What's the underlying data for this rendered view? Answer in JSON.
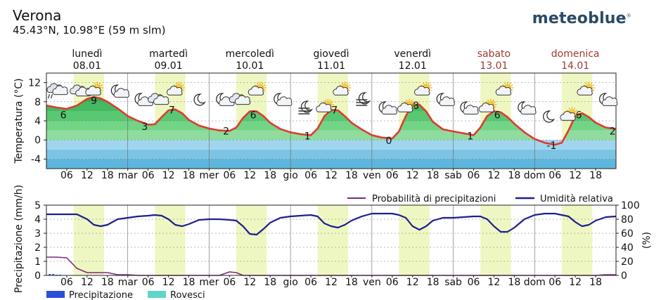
{
  "header": {
    "location": "Verona",
    "coordinates": "45.43°N, 10.98°E (59 m slm)",
    "logo": "meteoblue",
    "logo_mark": "®"
  },
  "colors": {
    "temp_line": "#e03a2e",
    "humidity_line": "#1d1f8f",
    "precip_prob_line": "#7a2a7a",
    "precip_bar": "#2b50d6",
    "showers_bar": "#5fd6c8",
    "day_band": "#eef7c2",
    "weekend_label": "#9b3b2f"
  },
  "days": [
    {
      "name": "lunedì",
      "date": "08.01",
      "weekend": false
    },
    {
      "name": "martedì",
      "date": "09.01",
      "weekend": false
    },
    {
      "name": "mercoledì",
      "date": "10.01",
      "weekend": false
    },
    {
      "name": "giovedì",
      "date": "11.01",
      "weekend": false
    },
    {
      "name": "venerdì",
      "date": "12.01",
      "weekend": false
    },
    {
      "name": "sabato",
      "date": "13.01",
      "weekend": true
    },
    {
      "name": "domenica",
      "date": "14.01",
      "weekend": true
    }
  ],
  "weather_icons": [
    {
      "hour": 3,
      "icon": "rain-cloud-icon",
      "row": 0
    },
    {
      "hour": 10,
      "icon": "cloud-icon",
      "row": 0
    },
    {
      "hour": 14,
      "icon": "sun-cloud-icon",
      "row": 0
    },
    {
      "hour": 21,
      "icon": "moon-cloud-icon",
      "row": 0
    },
    {
      "hour": 28,
      "icon": "moon-cloud-icon",
      "row": 1
    },
    {
      "hour": 33,
      "icon": "cloud-icon",
      "row": 1
    },
    {
      "hour": 38,
      "icon": "sun-cloud-icon",
      "row": 0
    },
    {
      "hour": 45,
      "icon": "moon-icon",
      "row": 1
    },
    {
      "hour": 52,
      "icon": "moon-cloud-icon",
      "row": 1
    },
    {
      "hour": 57,
      "icon": "cloud-icon",
      "row": 1
    },
    {
      "hour": 62,
      "icon": "sun-cloud-icon",
      "row": 0
    },
    {
      "hour": 69,
      "icon": "moon-cloud-icon",
      "row": 1
    },
    {
      "hour": 76,
      "icon": "fog-moon-icon",
      "row": 2
    },
    {
      "hour": 82,
      "icon": "sun-cloud-icon",
      "row": 2
    },
    {
      "hour": 87,
      "icon": "sun-cloud-icon",
      "row": 0
    },
    {
      "hour": 93,
      "icon": "fog-moon-icon",
      "row": 1
    },
    {
      "hour": 100,
      "icon": "moon-cloud-icon",
      "row": 2
    },
    {
      "hour": 106,
      "icon": "sun-cloud-icon",
      "row": 2
    },
    {
      "hour": 111,
      "icon": "sun-cloud-icon",
      "row": 0
    },
    {
      "hour": 117,
      "icon": "moon-cloud-icon",
      "row": 1
    },
    {
      "hour": 124,
      "icon": "moon-cloud-icon",
      "row": 2
    },
    {
      "hour": 130,
      "icon": "sun-cloud-icon",
      "row": 2
    },
    {
      "hour": 135,
      "icon": "sun-cloud-icon",
      "row": 0
    },
    {
      "hour": 141,
      "icon": "moon-cloud-icon",
      "row": 2
    },
    {
      "hour": 148,
      "icon": "moon-icon",
      "row": 3
    },
    {
      "hour": 154,
      "icon": "sun-cloud-icon",
      "row": 3
    },
    {
      "hour": 159,
      "icon": "sun-cloud-icon",
      "row": 0
    },
    {
      "hour": 165,
      "icon": "moon-cloud-icon",
      "row": 1
    }
  ],
  "chart_data": [
    {
      "type": "line",
      "ylabel": "Temperatura (°C)",
      "ylim": [
        -6,
        14
      ],
      "yticks": [
        -4,
        0,
        4,
        8,
        12
      ],
      "xlim": [
        0,
        168
      ],
      "x_tick_labels": [
        "06",
        "12",
        "18",
        "mar",
        "06",
        "12",
        "18",
        "mer",
        "06",
        "12",
        "18",
        "gio",
        "06",
        "12",
        "18",
        "ven",
        "06",
        "12",
        "18",
        "sab",
        "06",
        "12",
        "18",
        "dom",
        "06",
        "12",
        "18"
      ],
      "x_tick_hours": [
        6,
        12,
        18,
        24,
        30,
        36,
        42,
        48,
        54,
        60,
        66,
        72,
        78,
        84,
        90,
        96,
        102,
        108,
        114,
        120,
        126,
        132,
        138,
        144,
        150,
        156,
        162
      ],
      "daylight_bands": [
        [
          8,
          17
        ],
        [
          32,
          41
        ],
        [
          56,
          65
        ],
        [
          80,
          89
        ],
        [
          104,
          113
        ],
        [
          128,
          137
        ],
        [
          152,
          161
        ]
      ],
      "x": [
        0,
        3,
        6,
        9,
        12,
        14,
        16,
        18,
        21,
        24,
        27,
        30,
        32,
        34,
        36,
        38,
        40,
        42,
        45,
        48,
        51,
        54,
        56,
        58,
        60,
        62,
        64,
        66,
        69,
        72,
        75,
        78,
        80,
        82,
        84,
        86,
        88,
        90,
        93,
        96,
        99,
        102,
        104,
        106,
        108,
        110,
        112,
        114,
        117,
        120,
        123,
        126,
        128,
        130,
        132,
        134,
        136,
        138,
        141,
        144,
        147,
        150,
        152,
        154,
        156,
        158,
        160,
        162,
        165,
        168
      ],
      "series": [
        {
          "values": [
            7.2,
            6.8,
            6.5,
            7.2,
            8.6,
            9.0,
            8.7,
            8.0,
            6.6,
            5.0,
            4.0,
            3.2,
            3.3,
            4.8,
            6.2,
            6.4,
            5.6,
            4.2,
            3.0,
            2.4,
            2.0,
            1.9,
            2.6,
            4.6,
            6.0,
            6.0,
            5.0,
            3.6,
            2.3,
            1.6,
            1.2,
            1.0,
            2.4,
            5.0,
            6.3,
            6.2,
            5.0,
            3.6,
            2.2,
            1.0,
            0.5,
            0.3,
            1.8,
            5.0,
            7.4,
            7.4,
            6.0,
            3.8,
            2.2,
            1.8,
            1.4,
            1.0,
            2.6,
            5.0,
            6.0,
            5.8,
            4.8,
            3.4,
            1.6,
            0.2,
            -0.6,
            -1.0,
            -0.6,
            2.0,
            5.0,
            5.6,
            4.8,
            3.6,
            2.6,
            2.3
          ]
        }
      ],
      "labels": [
        {
          "hour": 5,
          "value": 6,
          "text": "6"
        },
        {
          "hour": 14,
          "value": 9,
          "text": "9"
        },
        {
          "hour": 29,
          "value": 3,
          "text": "3"
        },
        {
          "hour": 37,
          "value": 7,
          "text": "7"
        },
        {
          "hour": 53,
          "value": 2,
          "text": "2"
        },
        {
          "hour": 61,
          "value": 6,
          "text": "6"
        },
        {
          "hour": 77,
          "value": 1,
          "text": "1"
        },
        {
          "hour": 85,
          "value": 7,
          "text": "7"
        },
        {
          "hour": 101,
          "value": 0,
          "text": "0"
        },
        {
          "hour": 109,
          "value": 8,
          "text": "8"
        },
        {
          "hour": 125,
          "value": 1,
          "text": "1"
        },
        {
          "hour": 133,
          "value": 6,
          "text": "6"
        },
        {
          "hour": 149,
          "value": -1,
          "text": "-1"
        },
        {
          "hour": 157,
          "value": 6,
          "text": "6"
        },
        {
          "hour": 167,
          "value": 2,
          "text": "2"
        }
      ]
    },
    {
      "type": "line",
      "ylabel": "Precipitazione (mm/h)",
      "ylabel_right": "(%)",
      "ylim": [
        0,
        5
      ],
      "yticks": [
        0,
        1,
        2,
        3,
        4,
        5
      ],
      "ylim_right": [
        0,
        100
      ],
      "yticks_right": [
        0,
        20,
        40,
        60,
        80,
        100
      ],
      "xlim": [
        0,
        168
      ],
      "x_tick_labels": [
        "06",
        "12",
        "18",
        "mar",
        "06",
        "12",
        "18",
        "mer",
        "06",
        "12",
        "18",
        "gio",
        "06",
        "12",
        "18",
        "ven",
        "06",
        "12",
        "18",
        "sab",
        "06",
        "12",
        "18",
        "dom",
        "06",
        "12",
        "18"
      ],
      "x_tick_hours": [
        6,
        12,
        18,
        24,
        30,
        36,
        42,
        48,
        54,
        60,
        66,
        72,
        78,
        84,
        90,
        96,
        102,
        108,
        114,
        120,
        126,
        132,
        138,
        144,
        150,
        156,
        162
      ],
      "daylight_bands": [
        [
          8,
          17
        ],
        [
          32,
          41
        ],
        [
          56,
          65
        ],
        [
          80,
          89
        ],
        [
          104,
          113
        ],
        [
          128,
          137
        ],
        [
          152,
          161
        ]
      ],
      "legend_top": [
        "Probabilità di precipitazioni",
        "Umidità relativa"
      ],
      "legend_bottom": [
        "Precipitazione",
        "Rovesci"
      ],
      "x": [
        0,
        3,
        6,
        9,
        12,
        14,
        16,
        18,
        21,
        24,
        27,
        30,
        32,
        34,
        36,
        38,
        40,
        42,
        45,
        48,
        51,
        54,
        56,
        58,
        60,
        62,
        64,
        66,
        69,
        72,
        75,
        78,
        80,
        82,
        84,
        86,
        88,
        90,
        93,
        96,
        99,
        102,
        104,
        106,
        108,
        110,
        112,
        114,
        117,
        120,
        123,
        126,
        128,
        130,
        132,
        134,
        136,
        138,
        141,
        144,
        147,
        150,
        152,
        154,
        156,
        158,
        160,
        162,
        165,
        168
      ],
      "series": [
        {
          "name": "Umidità relativa",
          "axis": "right",
          "values": [
            87,
            87,
            87,
            87,
            80,
            72,
            70,
            72,
            80,
            82,
            84,
            85,
            86,
            85,
            80,
            72,
            70,
            73,
            79,
            80,
            80,
            79,
            78,
            70,
            59,
            58,
            66,
            75,
            82,
            84,
            85,
            86,
            84,
            74,
            70,
            68,
            72,
            78,
            84,
            88,
            88,
            88,
            86,
            82,
            70,
            65,
            70,
            78,
            82,
            82,
            83,
            84,
            84,
            80,
            70,
            62,
            62,
            68,
            80,
            86,
            88,
            88,
            86,
            84,
            76,
            70,
            72,
            78,
            83,
            84
          ]
        },
        {
          "name": "Probabilità di precipitazioni",
          "axis": "right",
          "values": [
            26,
            26,
            25,
            10,
            4,
            4,
            4,
            4,
            1,
            1,
            0,
            0,
            0,
            0,
            0,
            0,
            0,
            0,
            0,
            0,
            0,
            5,
            4,
            0,
            0,
            0,
            0,
            0,
            0,
            0,
            0,
            0,
            0,
            0,
            0,
            0,
            0,
            0,
            0,
            0,
            0,
            0,
            0,
            0,
            0,
            0,
            0,
            0,
            0,
            0,
            0,
            0,
            0,
            0,
            0,
            0,
            0,
            0,
            0,
            0,
            0,
            0,
            0,
            0,
            0,
            0,
            0,
            0,
            1,
            1
          ]
        }
      ],
      "precipitation_bars": [
        {
          "hour": 1,
          "value": 0.1
        },
        {
          "hour": 2,
          "value": 0.1
        },
        {
          "hour": 3,
          "value": 0.05
        },
        {
          "hour": 4,
          "value": 0.05
        }
      ]
    }
  ]
}
